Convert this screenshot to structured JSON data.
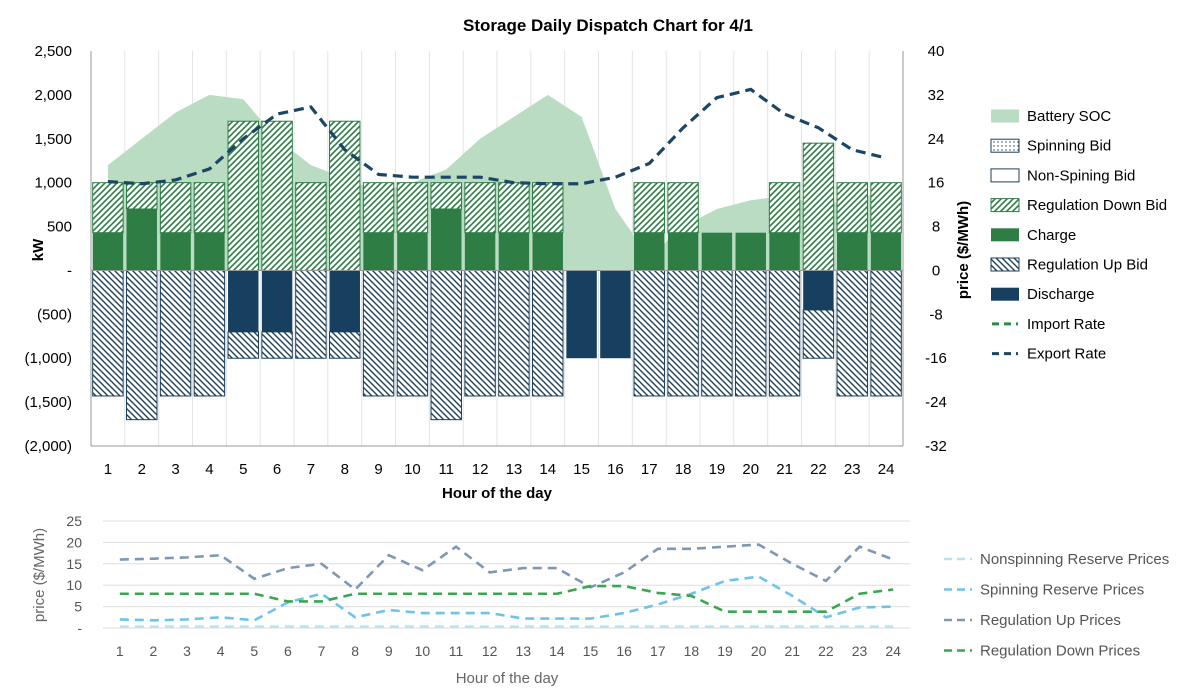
{
  "chart_data": [
    {
      "type": "bar",
      "title": "Storage Daily Dispatch Chart for 4/1",
      "xlabel": "Hour of the day",
      "ylabel": "kW",
      "ylabel_right": "price ($/MWh)",
      "ylim": [
        -2000,
        2500
      ],
      "ylim_right": [
        -32,
        40
      ],
      "y_ticks": [
        "2,500",
        "2,000",
        "1,500",
        "1,000",
        "500",
        "-",
        "(500)",
        "(1,000)",
        "(1,500)",
        "(2,000)"
      ],
      "y_right_ticks": [
        "40",
        "32",
        "24",
        "16",
        "8",
        "0",
        "-8",
        "-16",
        "-24",
        "-32"
      ],
      "categories": [
        "1",
        "2",
        "3",
        "4",
        "5",
        "6",
        "7",
        "8",
        "9",
        "10",
        "11",
        "12",
        "13",
        "14",
        "15",
        "16",
        "17",
        "18",
        "19",
        "20",
        "21",
        "22",
        "23",
        "24"
      ],
      "grid": "vertical",
      "legend_position": "right",
      "colors": {
        "soc": "#b9dcc2",
        "charge": "#2e7d45",
        "reg_down": "#2e7d45",
        "reg_up": "#1d3f5a",
        "discharge": "#173f5f",
        "import": "#2e8b46",
        "export": "#1d4564"
      },
      "legend": [
        "Battery SOC",
        "Spinning Bid",
        "Non-Spining Bid",
        "Regulation Down Bid",
        "Charge",
        "Regulation Up Bid",
        "Discharge",
        "Import Rate",
        "Export Rate"
      ],
      "series": {
        "battery_soc": [
          1200,
          1500,
          1800,
          2000,
          1950,
          1500,
          1200,
          1050,
          900,
          1000,
          1150,
          1500,
          1750,
          2000,
          1750,
          700,
          150,
          500,
          700,
          800,
          850,
          750,
          800,
          900
        ],
        "charge": [
          430,
          700,
          430,
          430,
          0,
          0,
          0,
          0,
          430,
          430,
          700,
          430,
          430,
          430,
          0,
          0,
          430,
          430,
          430,
          430,
          430,
          0,
          430,
          430
        ],
        "regulation_down_bid": [
          570,
          300,
          570,
          570,
          1700,
          1700,
          1000,
          1700,
          570,
          570,
          300,
          570,
          570,
          570,
          0,
          0,
          570,
          570,
          0,
          0,
          570,
          1450,
          570,
          570
        ],
        "discharge": [
          0,
          0,
          0,
          0,
          -700,
          -700,
          0,
          -700,
          0,
          0,
          0,
          0,
          0,
          0,
          -1000,
          -1000,
          0,
          0,
          0,
          0,
          0,
          -450,
          0,
          0
        ],
        "regulation_up_bid": [
          -1430,
          -1700,
          -1430,
          -1430,
          -300,
          -300,
          -1000,
          -300,
          -1430,
          -1430,
          -1700,
          -1430,
          -1430,
          -1430,
          0,
          0,
          -1430,
          -1430,
          -1430,
          -1430,
          -1430,
          -550,
          -1430,
          -1430
        ],
        "spinning_bid": [],
        "non_spinning_bid": [],
        "import_rate": [],
        "export_rate": [
          16.2,
          15.8,
          16.5,
          18.5,
          24,
          28.5,
          29.8,
          22,
          17.5,
          17,
          17,
          17,
          16,
          15.8,
          15.8,
          17,
          19.5,
          26,
          31.5,
          33,
          28.5,
          26,
          22,
          20.5
        ]
      }
    },
    {
      "type": "line",
      "xlabel": "Hour of the day",
      "ylabel": "price ($/MWh)",
      "ylim": [
        0,
        25
      ],
      "y_ticks": [
        "25",
        "20",
        "15",
        "10",
        "5",
        "-"
      ],
      "categories": [
        "1",
        "2",
        "3",
        "4",
        "5",
        "6",
        "7",
        "8",
        "9",
        "10",
        "11",
        "12",
        "13",
        "14",
        "15",
        "16",
        "17",
        "18",
        "19",
        "20",
        "21",
        "22",
        "23",
        "24"
      ],
      "grid": "horizontal",
      "legend_position": "right",
      "series": [
        {
          "name": "Nonspinning Reserve Prices",
          "color": "#b9e3f4",
          "values": [
            0.3,
            0.3,
            0.3,
            0.3,
            0.3,
            0.3,
            0.3,
            0.3,
            0.3,
            0.3,
            0.3,
            0.3,
            0.3,
            0.3,
            0.3,
            0.3,
            0.3,
            0.3,
            0.3,
            0.3,
            0.3,
            0.3,
            0.3,
            0.3
          ]
        },
        {
          "name": "Spinning Reserve Prices",
          "color": "#6fc3ea",
          "values": [
            2,
            1.8,
            2,
            2.5,
            1.8,
            6,
            8,
            2.5,
            4.2,
            3.5,
            3.5,
            3.5,
            2.2,
            2.2,
            2.2,
            3.5,
            5.5,
            8,
            11,
            12,
            7.5,
            2.5,
            4.8,
            5
          ]
        },
        {
          "name": "Regulation Up Prices",
          "color": "#7e98b3",
          "values": [
            16,
            16.2,
            16.5,
            17,
            11.5,
            14,
            15,
            9,
            17,
            13.5,
            19,
            13,
            14,
            14,
            9.5,
            13,
            18.5,
            18.5,
            19,
            19.5,
            15,
            11,
            19,
            16
          ]
        },
        {
          "name": "Regulation Down Prices",
          "color": "#3aa650",
          "values": [
            8,
            8,
            8,
            8,
            8,
            6.2,
            6.2,
            8,
            8,
            8,
            8,
            8,
            8,
            8,
            9.8,
            9.8,
            8.2,
            7.5,
            3.8,
            3.8,
            3.8,
            3.8,
            8,
            9
          ]
        }
      ]
    }
  ]
}
